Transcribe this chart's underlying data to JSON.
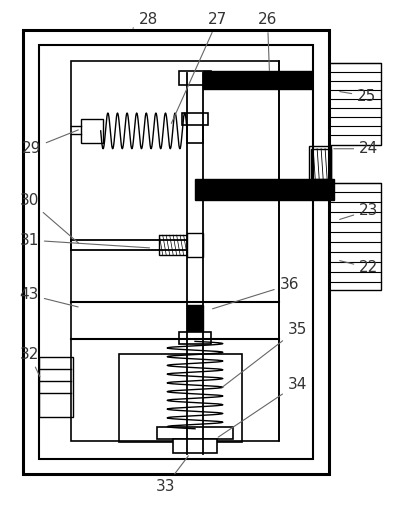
{
  "fig_width": 3.97,
  "fig_height": 5.09,
  "dpi": 100,
  "bg_color": "#ffffff",
  "lc": "#000000",
  "label_fs": 11,
  "label_color": "#333333",
  "leader_color": "#666666"
}
